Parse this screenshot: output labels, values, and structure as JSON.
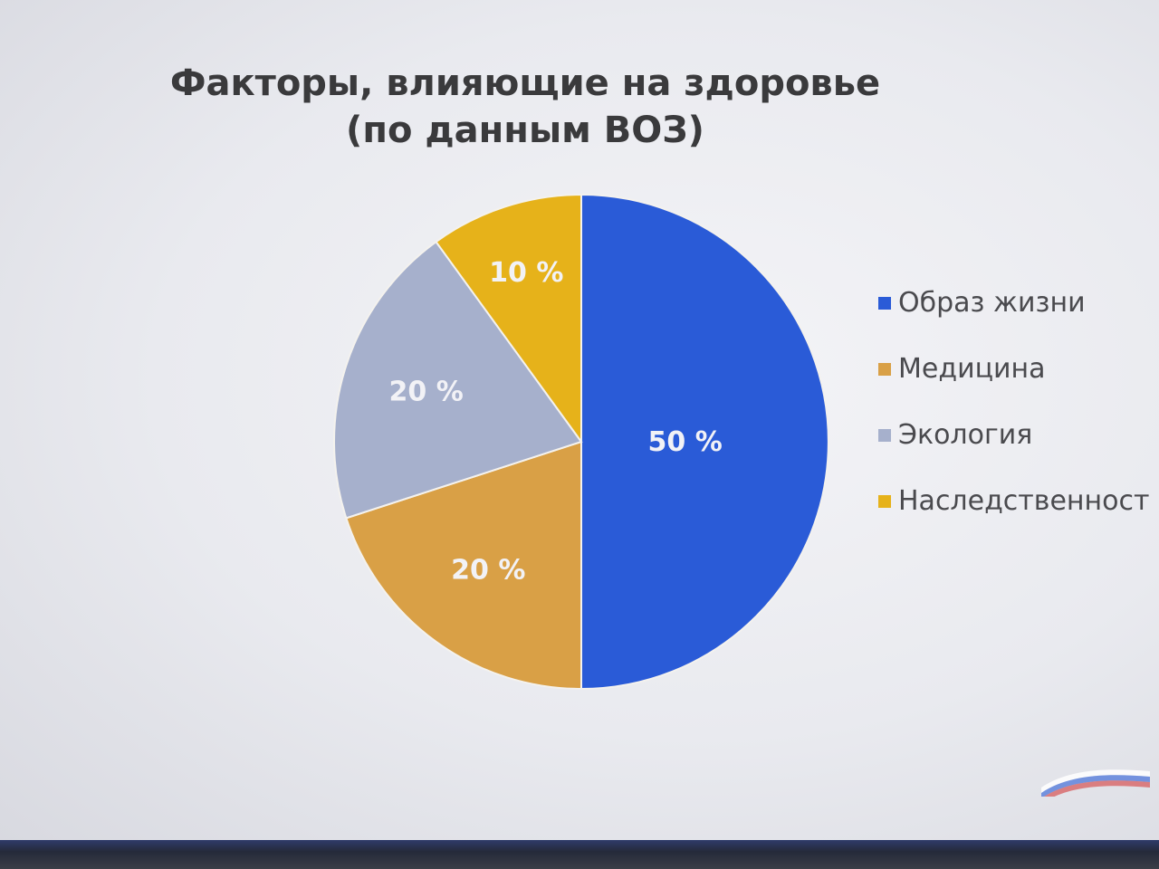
{
  "title_line1": "Факторы, влияющие на здоровье",
  "title_line2": "(по данным ВОЗ)",
  "chart_data": {
    "type": "pie",
    "title": "Факторы, влияющие на здоровье (по данным ВОЗ)",
    "legend_position": "right",
    "slices": [
      {
        "name": "Образ жизни",
        "value": 50,
        "label": "50 %",
        "color": "#2a5bd7"
      },
      {
        "name": "Медицина",
        "value": 20,
        "label": "20 %",
        "color": "#d9a046"
      },
      {
        "name": "Экология",
        "value": 20,
        "label": "20 %",
        "color": "#a6b0cc"
      },
      {
        "name": "Наследственност",
        "value": 10,
        "label": "10 %",
        "color": "#e6b21a"
      }
    ]
  }
}
